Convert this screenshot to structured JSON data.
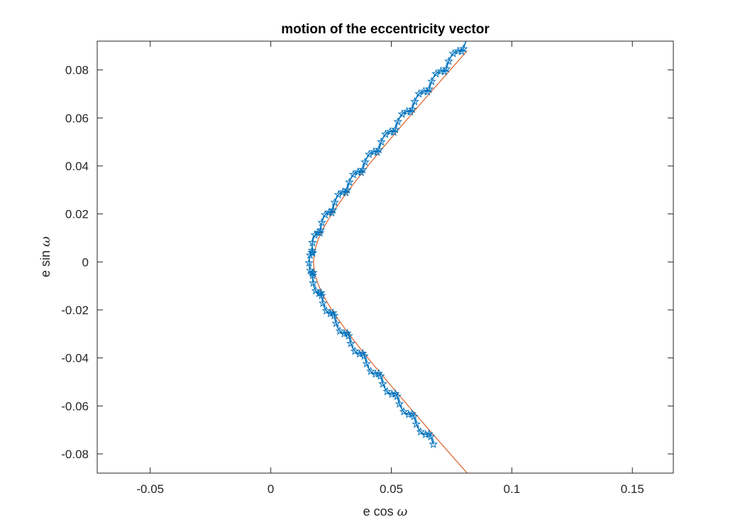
{
  "chart_data": {
    "type": "line",
    "title": "motion of the eccentricity vector",
    "xlabel_text": "e cos ",
    "xlabel_symbol": "ω",
    "ylabel_text": "e sin ",
    "ylabel_symbol": "ω",
    "xlim": [
      -0.072,
      0.167
    ],
    "ylim": [
      -0.088,
      0.092
    ],
    "xticks": [
      -0.05,
      0,
      0.05,
      0.1,
      0.15
    ],
    "xtick_labels": [
      "-0.05",
      "0",
      "0.05",
      "0.1",
      "0.15"
    ],
    "yticks": [
      -0.08,
      -0.06,
      -0.04,
      -0.02,
      0,
      0.02,
      0.04,
      0.06,
      0.08
    ],
    "ytick_labels": [
      "-0.08",
      "-0.06",
      "-0.04",
      "-0.02",
      "0",
      "0.02",
      "0.04",
      "0.06",
      "0.08"
    ],
    "grid": false,
    "series": [
      {
        "description_role": "simulated",
        "color": "#0072BD",
        "marker": "pentagram",
        "hyperbola": {
          "a": 0.0165,
          "b": 0.019
        },
        "wobble": {
          "cycles": 20,
          "amplitude": 0.0032
        },
        "y_range": [
          -0.076,
          0.092
        ]
      },
      {
        "description_role": "analytic",
        "color": "#D95319",
        "marker": "none",
        "hyperbola": {
          "a": 0.0178,
          "b": 0.0197
        },
        "y_range": [
          -0.088,
          0.088
        ]
      }
    ]
  }
}
